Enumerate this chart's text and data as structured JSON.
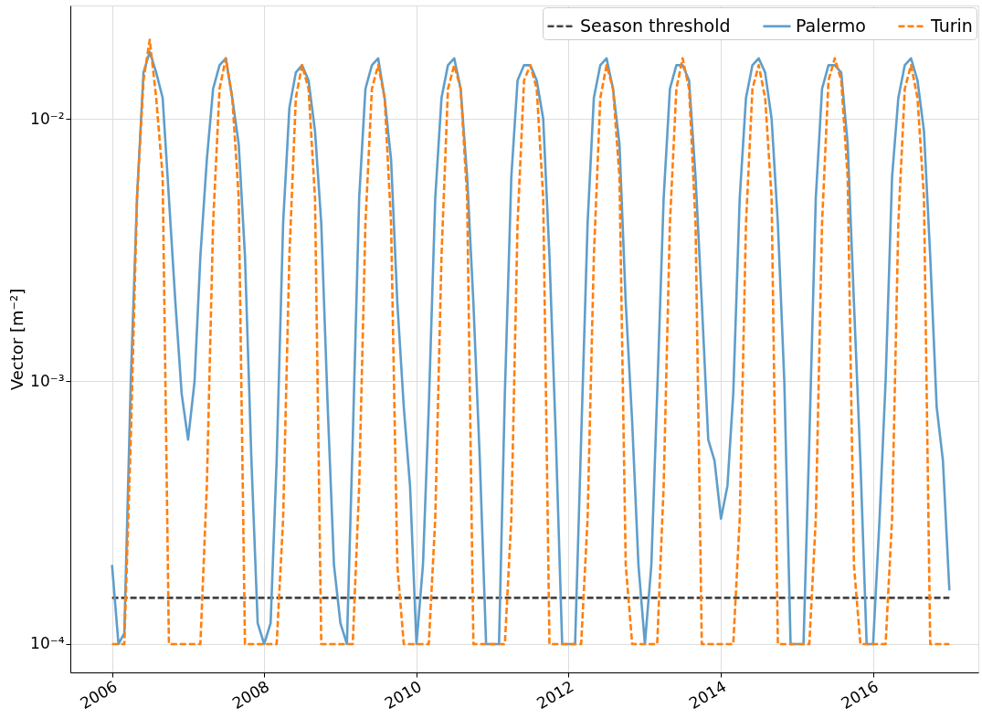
{
  "chart_data": {
    "type": "line",
    "ylabel": "Vector [m⁻²]",
    "log": "y",
    "grid": true,
    "legend": "top right",
    "xlim": [
      "2005-06-15",
      "2017-05-20"
    ],
    "xticks": [
      "2006",
      "2008",
      "2010",
      "2012",
      "2014",
      "2016"
    ],
    "ylim": [
      7.8e-05,
      0.027
    ],
    "yticks": [
      {
        "value": 0.0001,
        "label": "10⁻⁴"
      },
      {
        "value": 0.001,
        "label": "10⁻³"
      },
      {
        "value": 0.01,
        "label": "10⁻²"
      }
    ],
    "series": [
      {
        "name": "Season threshold",
        "color": "#444444",
        "line_style": "dashed",
        "x": [
          "2006-01",
          "2017-01"
        ],
        "values": [
          0.00015,
          0.00015
        ]
      },
      {
        "name": "Palermo",
        "color": "#5f9ecb",
        "line_style": "solid",
        "x": [
          "2006-01",
          "2006-02",
          "2006-03",
          "2006-04",
          "2006-05",
          "2006-06",
          "2006-07",
          "2006-08",
          "2006-09",
          "2006-10",
          "2006-11",
          "2006-12",
          "2007-01",
          "2007-02",
          "2007-03",
          "2007-04",
          "2007-05",
          "2007-06",
          "2007-07",
          "2007-08",
          "2007-09",
          "2007-10",
          "2007-11",
          "2007-12",
          "2008-01",
          "2008-02",
          "2008-03",
          "2008-04",
          "2008-05",
          "2008-06",
          "2008-07",
          "2008-08",
          "2008-09",
          "2008-10",
          "2008-11",
          "2008-12",
          "2009-01",
          "2009-02",
          "2009-03",
          "2009-04",
          "2009-05",
          "2009-06",
          "2009-07",
          "2009-08",
          "2009-09",
          "2009-10",
          "2009-11",
          "2009-12",
          "2010-01",
          "2010-02",
          "2010-03",
          "2010-04",
          "2010-05",
          "2010-06",
          "2010-07",
          "2010-08",
          "2010-09",
          "2010-10",
          "2010-11",
          "2010-12",
          "2011-01",
          "2011-02",
          "2011-03",
          "2011-04",
          "2011-05",
          "2011-06",
          "2011-07",
          "2011-08",
          "2011-09",
          "2011-10",
          "2011-11",
          "2011-12",
          "2012-01",
          "2012-02",
          "2012-03",
          "2012-04",
          "2012-05",
          "2012-06",
          "2012-07",
          "2012-08",
          "2012-09",
          "2012-10",
          "2012-11",
          "2012-12",
          "2013-01",
          "2013-02",
          "2013-03",
          "2013-04",
          "2013-05",
          "2013-06",
          "2013-07",
          "2013-08",
          "2013-09",
          "2013-10",
          "2013-11",
          "2013-12",
          "2014-01",
          "2014-02",
          "2014-03",
          "2014-04",
          "2014-05",
          "2014-06",
          "2014-07",
          "2014-08",
          "2014-09",
          "2014-10",
          "2014-11",
          "2014-12",
          "2015-01",
          "2015-02",
          "2015-03",
          "2015-04",
          "2015-05",
          "2015-06",
          "2015-07",
          "2015-08",
          "2015-09",
          "2015-10",
          "2015-11",
          "2015-12",
          "2016-01",
          "2016-02",
          "2016-03",
          "2016-04",
          "2016-05",
          "2016-06",
          "2016-07",
          "2016-08",
          "2016-09",
          "2016-10",
          "2016-11",
          "2016-12",
          "2017-01"
        ],
        "values": [
          0.0002,
          0.0001,
          0.00011,
          0.001,
          0.005,
          0.015,
          0.018,
          0.015,
          0.012,
          0.005,
          0.002,
          0.0009,
          0.0006,
          0.001,
          0.003,
          0.007,
          0.013,
          0.016,
          0.017,
          0.012,
          0.008,
          0.003,
          0.0005,
          0.00012,
          0.0001,
          0.00012,
          0.0005,
          0.004,
          0.011,
          0.015,
          0.016,
          0.014,
          0.009,
          0.004,
          0.0008,
          0.0002,
          0.00012,
          0.0001,
          0.0006,
          0.005,
          0.013,
          0.016,
          0.017,
          0.012,
          0.007,
          0.002,
          0.0008,
          0.0004,
          0.0001,
          0.0002,
          0.0008,
          0.005,
          0.012,
          0.016,
          0.017,
          0.013,
          0.006,
          0.002,
          0.0005,
          0.0001,
          0.0001,
          0.0001,
          0.0009,
          0.006,
          0.014,
          0.016,
          0.016,
          0.014,
          0.01,
          0.003,
          0.0006,
          0.0001,
          0.0001,
          0.0001,
          0.0006,
          0.004,
          0.012,
          0.016,
          0.017,
          0.013,
          0.008,
          0.002,
          0.0007,
          0.0002,
          0.0001,
          0.0002,
          0.0009,
          0.005,
          0.013,
          0.016,
          0.016,
          0.014,
          0.006,
          0.002,
          0.0006,
          0.0005,
          0.0003,
          0.0004,
          0.0009,
          0.005,
          0.012,
          0.016,
          0.017,
          0.015,
          0.01,
          0.004,
          0.001,
          0.0001,
          0.0001,
          0.0001,
          0.0006,
          0.005,
          0.013,
          0.016,
          0.016,
          0.015,
          0.008,
          0.002,
          0.0005,
          0.0001,
          0.0001,
          0.0003,
          0.001,
          0.006,
          0.012,
          0.016,
          0.017,
          0.014,
          0.009,
          0.003,
          0.0008,
          0.0005,
          0.00016
        ]
      },
      {
        "name": "Turin",
        "color": "#ff7f0e",
        "line_style": "dashed",
        "x": [
          "2006-01",
          "2006-02",
          "2006-03",
          "2006-04",
          "2006-05",
          "2006-06",
          "2006-07",
          "2006-08",
          "2006-09",
          "2006-10",
          "2006-11",
          "2006-12",
          "2007-01",
          "2007-02",
          "2007-03",
          "2007-04",
          "2007-05",
          "2007-06",
          "2007-07",
          "2007-08",
          "2007-09",
          "2007-10",
          "2007-11",
          "2007-12",
          "2008-01",
          "2008-02",
          "2008-03",
          "2008-04",
          "2008-05",
          "2008-06",
          "2008-07",
          "2008-08",
          "2008-09",
          "2008-10",
          "2008-11",
          "2008-12",
          "2009-01",
          "2009-02",
          "2009-03",
          "2009-04",
          "2009-05",
          "2009-06",
          "2009-07",
          "2009-08",
          "2009-09",
          "2009-10",
          "2009-11",
          "2009-12",
          "2010-01",
          "2010-02",
          "2010-03",
          "2010-04",
          "2010-05",
          "2010-06",
          "2010-07",
          "2010-08",
          "2010-09",
          "2010-10",
          "2010-11",
          "2010-12",
          "2011-01",
          "2011-02",
          "2011-03",
          "2011-04",
          "2011-05",
          "2011-06",
          "2011-07",
          "2011-08",
          "2011-09",
          "2011-10",
          "2011-11",
          "2011-12",
          "2012-01",
          "2012-02",
          "2012-03",
          "2012-04",
          "2012-05",
          "2012-06",
          "2012-07",
          "2012-08",
          "2012-09",
          "2012-10",
          "2012-11",
          "2012-12",
          "2013-01",
          "2013-02",
          "2013-03",
          "2013-04",
          "2013-05",
          "2013-06",
          "2013-07",
          "2013-08",
          "2013-09",
          "2013-10",
          "2013-11",
          "2013-12",
          "2014-01",
          "2014-02",
          "2014-03",
          "2014-04",
          "2014-05",
          "2014-06",
          "2014-07",
          "2014-08",
          "2014-09",
          "2014-10",
          "2014-11",
          "2014-12",
          "2015-01",
          "2015-02",
          "2015-03",
          "2015-04",
          "2015-05",
          "2015-06",
          "2015-07",
          "2015-08",
          "2015-09",
          "2015-10",
          "2015-11",
          "2015-12",
          "2016-01",
          "2016-02",
          "2016-03",
          "2016-04",
          "2016-05",
          "2016-06",
          "2016-07",
          "2016-08",
          "2016-09",
          "2016-10",
          "2016-11",
          "2016-12",
          "2017-01"
        ],
        "values": [
          0.0001,
          0.0001,
          0.0001,
          0.0006,
          0.005,
          0.014,
          0.02,
          0.012,
          0.006,
          0.0001,
          0.0001,
          0.0001,
          0.0001,
          0.0001,
          0.0001,
          0.0004,
          0.004,
          0.013,
          0.017,
          0.012,
          0.005,
          0.0001,
          0.0001,
          0.0001,
          0.0001,
          0.0001,
          0.0001,
          0.0003,
          0.003,
          0.012,
          0.016,
          0.013,
          0.005,
          0.0001,
          0.0001,
          0.0001,
          0.0001,
          0.0001,
          0.0001,
          0.0004,
          0.004,
          0.013,
          0.016,
          0.012,
          0.004,
          0.0002,
          0.0001,
          0.0001,
          0.0001,
          0.0001,
          0.0001,
          0.0003,
          0.003,
          0.013,
          0.016,
          0.013,
          0.005,
          0.0001,
          0.0001,
          0.0001,
          0.0001,
          0.0001,
          0.0001,
          0.0003,
          0.004,
          0.014,
          0.016,
          0.013,
          0.005,
          0.0001,
          0.0001,
          0.0001,
          0.0001,
          0.0001,
          0.0001,
          0.0003,
          0.003,
          0.012,
          0.016,
          0.013,
          0.006,
          0.0002,
          0.0001,
          0.0001,
          0.0001,
          0.0001,
          0.0001,
          0.0004,
          0.004,
          0.013,
          0.017,
          0.013,
          0.004,
          0.0001,
          0.0001,
          0.0001,
          0.0001,
          0.0001,
          0.0001,
          0.0003,
          0.004,
          0.013,
          0.016,
          0.012,
          0.005,
          0.0001,
          0.0001,
          0.0001,
          0.0001,
          0.0001,
          0.0001,
          0.0003,
          0.004,
          0.014,
          0.017,
          0.014,
          0.006,
          0.0002,
          0.0001,
          0.0001,
          0.0001,
          0.0001,
          0.0001,
          0.0003,
          0.004,
          0.013,
          0.016,
          0.012,
          0.005,
          0.0001,
          0.0001,
          0.0001,
          0.0001
        ]
      }
    ]
  }
}
